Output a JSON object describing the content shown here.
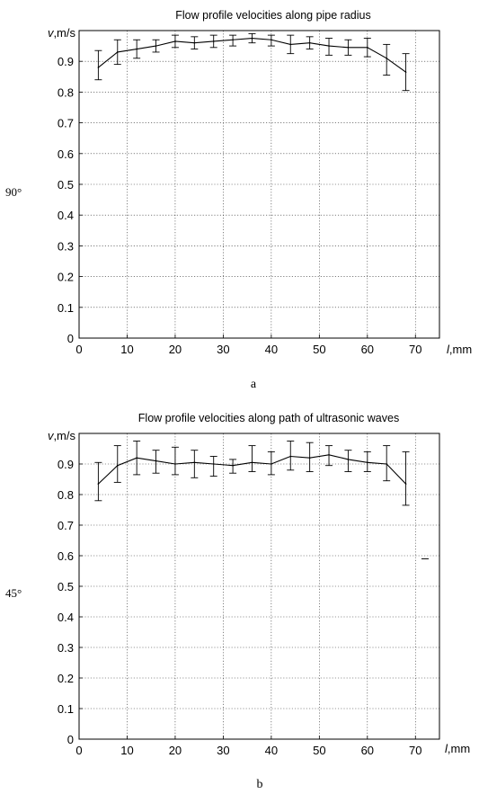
{
  "charts": [
    {
      "panel_label": "a",
      "angle_label": "90°",
      "chart_data": {
        "type": "line",
        "title": "Flow profile velocities along pipe radius",
        "ylabel_var": "v",
        "ylabel_unit": ",m/s",
        "xlabel_var": "l",
        "xlabel_unit": ",mm",
        "xlim": [
          0,
          75
        ],
        "ylim": [
          0,
          1.0
        ],
        "xticks": [
          0,
          10,
          20,
          30,
          40,
          50,
          60,
          70
        ],
        "yticks": [
          0,
          0.1,
          0.2,
          0.3,
          0.4,
          0.5,
          0.6,
          0.7,
          0.8,
          0.9
        ],
        "grid": true,
        "x": [
          4,
          8,
          12,
          16,
          20,
          24,
          28,
          32,
          36,
          40,
          44,
          48,
          52,
          56,
          60,
          64,
          68
        ],
        "y": [
          0.88,
          0.93,
          0.94,
          0.95,
          0.965,
          0.96,
          0.965,
          0.97,
          0.975,
          0.97,
          0.955,
          0.96,
          0.95,
          0.945,
          0.945,
          0.91,
          0.865
        ],
        "err_low": [
          0.84,
          0.89,
          0.91,
          0.93,
          0.945,
          0.94,
          0.945,
          0.95,
          0.96,
          0.95,
          0.925,
          0.94,
          0.92,
          0.92,
          0.915,
          0.855,
          0.805
        ],
        "err_high": [
          0.935,
          0.97,
          0.97,
          0.97,
          0.985,
          0.98,
          0.985,
          0.985,
          0.99,
          0.985,
          0.985,
          0.98,
          0.975,
          0.97,
          0.975,
          0.955,
          0.925
        ]
      }
    },
    {
      "panel_label": "b",
      "angle_label": "45°",
      "chart_data": {
        "type": "line",
        "title": "Flow profile velocities along path of ultrasonic waves",
        "ylabel_var": "v",
        "ylabel_unit": ",m/s",
        "xlabel_var": "l",
        "xlabel_unit": ",mm",
        "xlim": [
          0,
          75
        ],
        "ylim": [
          0,
          1.0
        ],
        "xticks": [
          0,
          10,
          20,
          30,
          40,
          50,
          60,
          70
        ],
        "yticks": [
          0,
          0.1,
          0.2,
          0.3,
          0.4,
          0.5,
          0.6,
          0.7,
          0.8,
          0.9
        ],
        "grid": true,
        "x": [
          4,
          8,
          12,
          16,
          20,
          24,
          28,
          32,
          36,
          40,
          44,
          48,
          52,
          56,
          60,
          64,
          68
        ],
        "y": [
          0.835,
          0.895,
          0.92,
          0.91,
          0.9,
          0.905,
          0.9,
          0.895,
          0.905,
          0.9,
          0.925,
          0.92,
          0.93,
          0.915,
          0.905,
          0.9,
          0.835
        ],
        "err_low": [
          0.78,
          0.84,
          0.865,
          0.87,
          0.865,
          0.855,
          0.86,
          0.87,
          0.875,
          0.865,
          0.88,
          0.875,
          0.895,
          0.875,
          0.875,
          0.845,
          0.765
        ],
        "err_high": [
          0.905,
          0.96,
          0.975,
          0.945,
          0.955,
          0.945,
          0.925,
          0.915,
          0.96,
          0.94,
          0.975,
          0.97,
          0.96,
          0.945,
          0.94,
          0.96,
          0.94
        ],
        "stray_mark": {
          "x": 72,
          "y": 0.59
        }
      }
    }
  ]
}
